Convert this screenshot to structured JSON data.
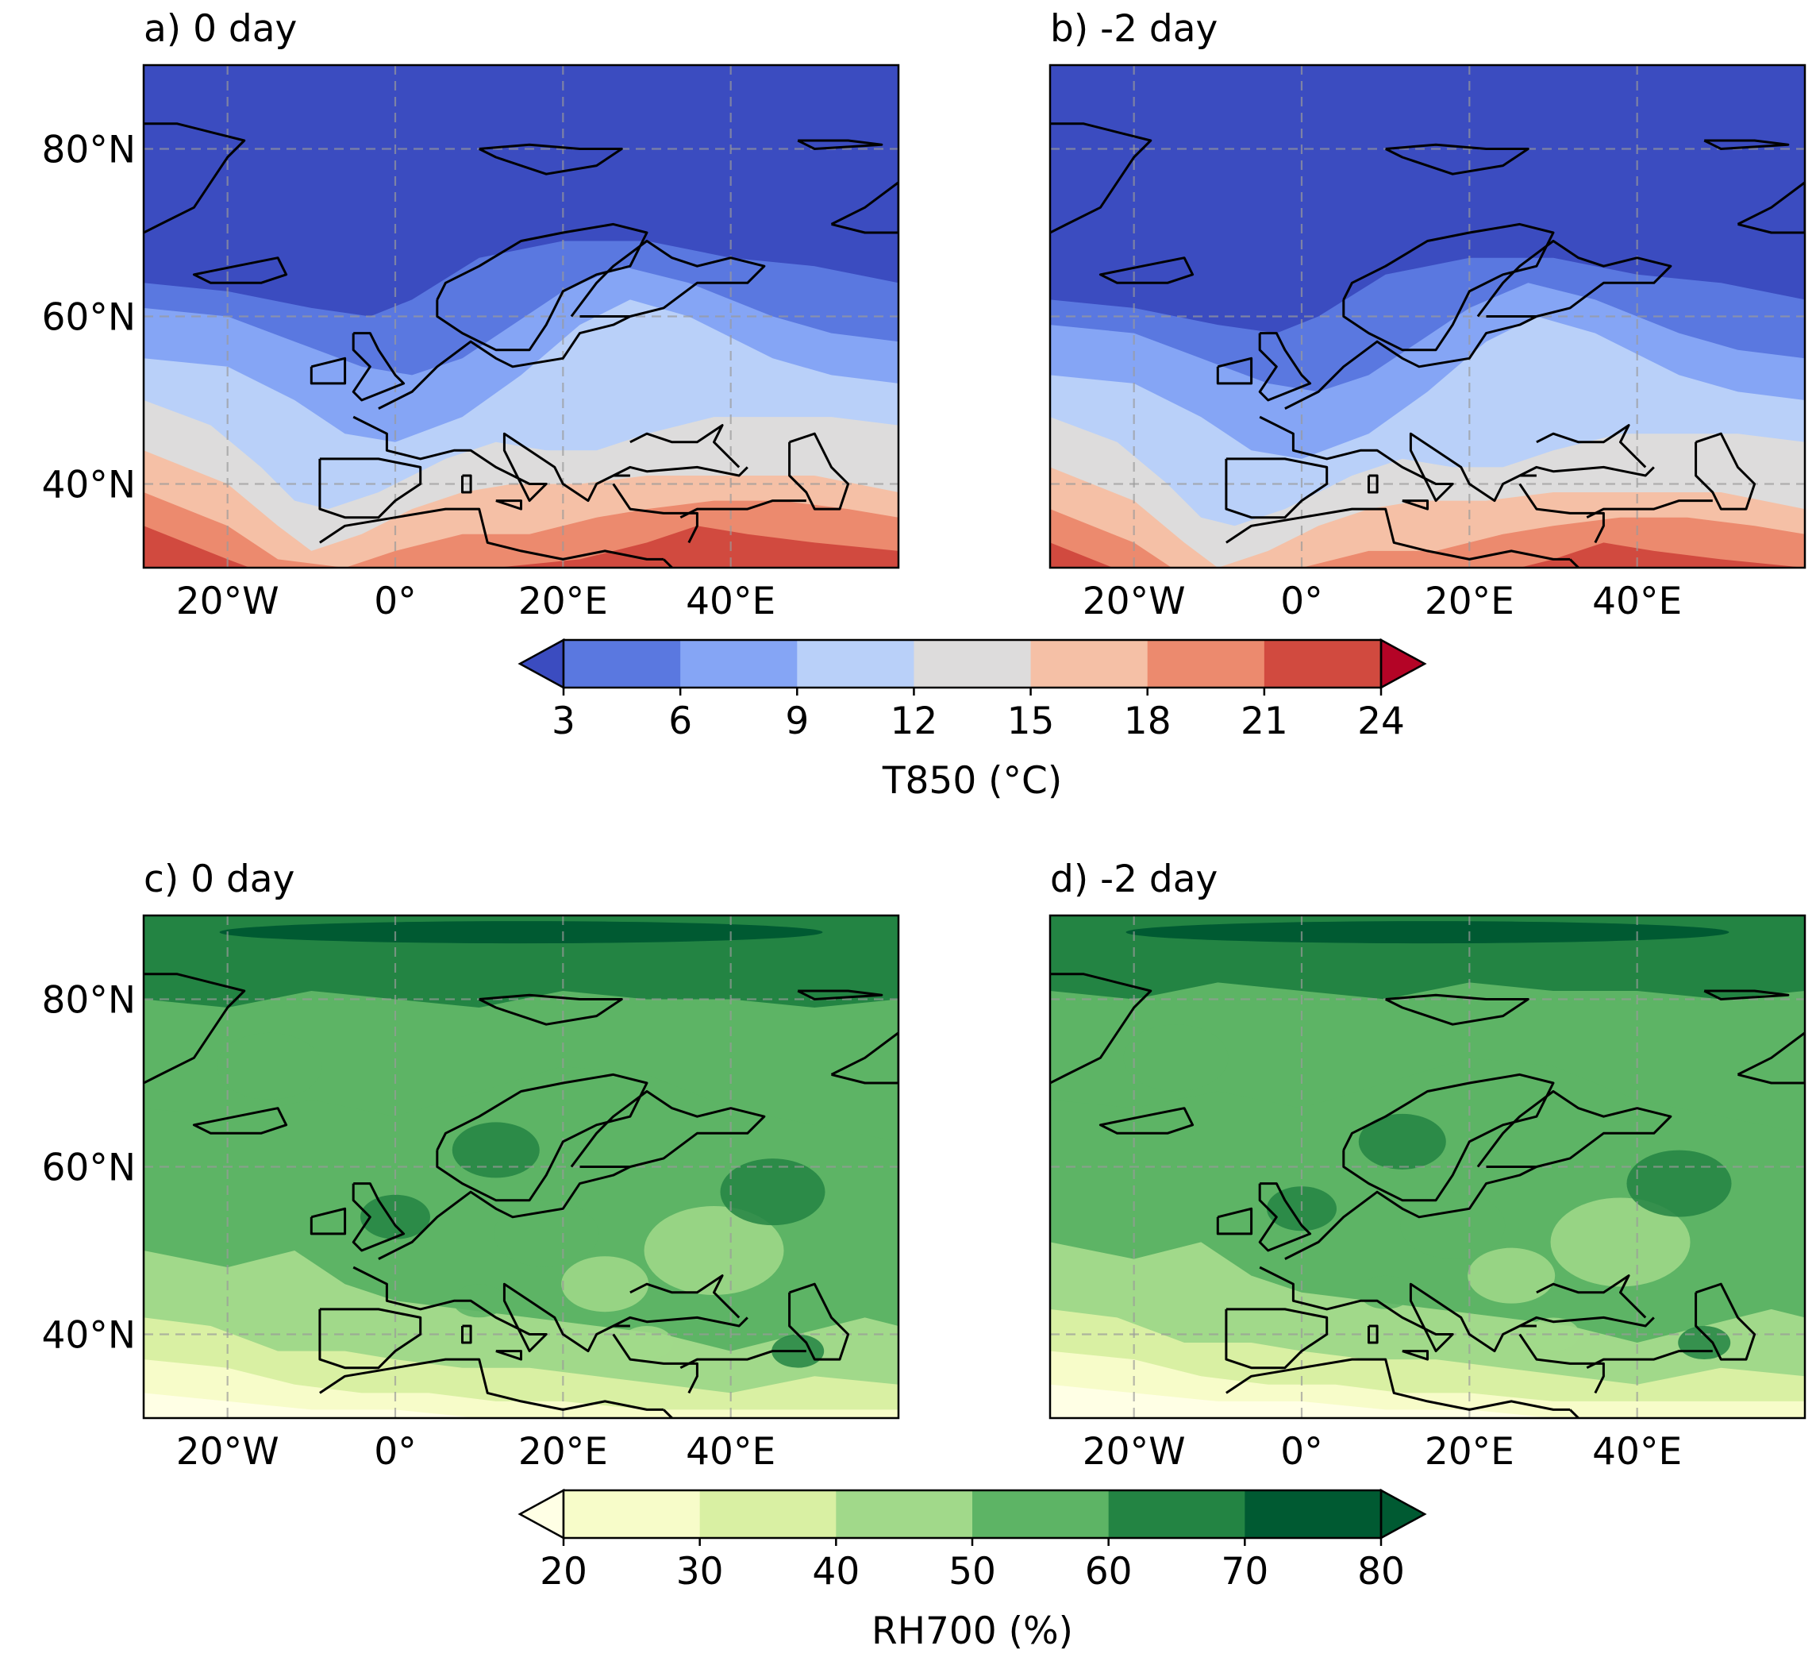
{
  "panels": [
    {
      "id": "a",
      "title": "a) 0 day",
      "variable": "T850"
    },
    {
      "id": "b",
      "title": "b) -2 day",
      "variable": "T850"
    },
    {
      "id": "c",
      "title": "c) 0 day",
      "variable": "RH700"
    },
    {
      "id": "d",
      "title": "d) -2 day",
      "variable": "RH700"
    }
  ],
  "map_extent": {
    "lon": [
      -30,
      60
    ],
    "lat": [
      30,
      90
    ]
  },
  "axis_ticks": {
    "lon": [
      {
        "value": -20,
        "label": "20°W"
      },
      {
        "value": 0,
        "label": "0°"
      },
      {
        "value": 20,
        "label": "20°E"
      },
      {
        "value": 40,
        "label": "40°E"
      }
    ],
    "lat": [
      {
        "value": 80,
        "label": "80°N"
      },
      {
        "value": 60,
        "label": "60°N"
      },
      {
        "value": 40,
        "label": "40°N"
      }
    ]
  },
  "colorbars": {
    "T850": {
      "label": "T850 (°C)",
      "levels": [
        "3",
        "6",
        "9",
        "12",
        "15",
        "18",
        "21",
        "24"
      ],
      "colors": [
        "#3b4cc0",
        "#5a78e0",
        "#85a5f5",
        "#b9d0f9",
        "#dddcdc",
        "#f5c0a6",
        "#ec8a6e",
        "#d14a3f",
        "#b40426"
      ],
      "extend": "both"
    },
    "RH700": {
      "label": "RH700 (%)",
      "levels": [
        "20",
        "30",
        "40",
        "50",
        "60",
        "70",
        "80"
      ],
      "colors": [
        "#ffffe5",
        "#f7fcc9",
        "#d9f0a3",
        "#a1d98a",
        "#5db465",
        "#238443",
        "#005a32"
      ],
      "extend": "both"
    }
  },
  "field_bands": {
    "T850": [
      {
        "lat": 90,
        "lon": [
          -30,
          60
        ],
        "level": 0,
        "base": 0
      },
      {
        "lat": 64,
        "lon": [
          -30,
          60
        ],
        "level": 1,
        "base": 1
      },
      {
        "lat": 61,
        "lon": [
          -30,
          60
        ],
        "level": 2,
        "base": 2
      },
      {
        "lat": 55,
        "lon": [
          -30,
          60
        ],
        "level": 3,
        "base": 3
      },
      {
        "lat": 50,
        "lon": [
          -30,
          60
        ],
        "level": 4,
        "base": 4
      },
      {
        "lat": 44,
        "lon": [
          -30,
          60
        ],
        "level": 5,
        "base": 5
      },
      {
        "lat": 39,
        "lon": [
          -30,
          60
        ],
        "level": 6,
        "base": 6
      },
      {
        "lat": 35,
        "lon": [
          -30,
          60
        ],
        "level": 7,
        "base": 7
      }
    ],
    "RH700": [
      {
        "lat": 90,
        "lon": [
          -30,
          60
        ],
        "level": 5,
        "base": 5
      },
      {
        "lat": 80,
        "lon": [
          -30,
          60
        ],
        "level": 4,
        "base": 4
      },
      {
        "lat": 67,
        "lon": [
          -30,
          60
        ],
        "level": 4,
        "base": 4
      },
      {
        "lat": 50,
        "lon": [
          -30,
          60
        ],
        "level": 3,
        "base": 3
      },
      {
        "lat": 42,
        "lon": [
          -30,
          60
        ],
        "level": 2,
        "base": 2
      },
      {
        "lat": 37,
        "lon": [
          -30,
          60
        ],
        "level": 1,
        "base": 1
      },
      {
        "lat": 33,
        "lon": [
          -30,
          60
        ],
        "level": 0,
        "base": 0
      }
    ]
  }
}
